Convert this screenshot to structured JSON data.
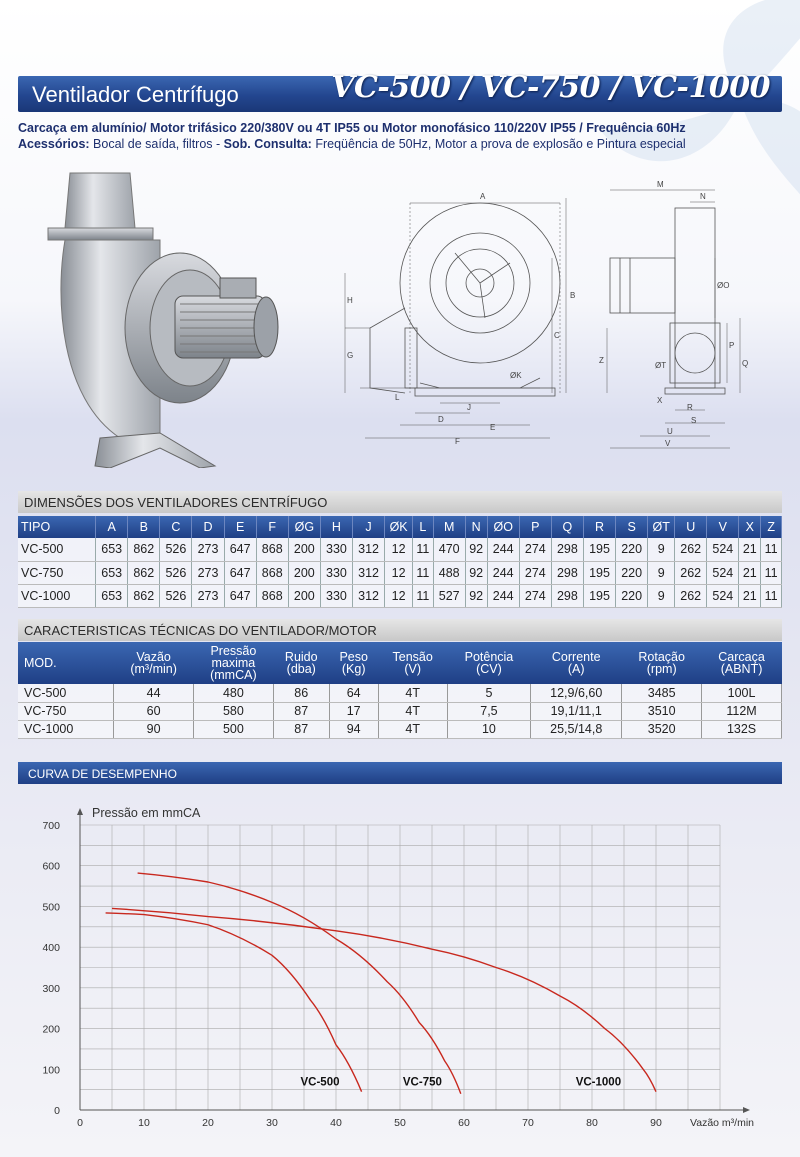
{
  "header": {
    "title": "Ventilador Centrífugo",
    "models_title": "VC-500 / VC-750 / VC-1000"
  },
  "specs": {
    "line1": "Carcaça em alumínio/ Motor trifásico 220/380V ou 4T IP55 ou Motor monofásico 110/220V IP55 / Frequência 60Hz",
    "accessories_label": "Acessórios:",
    "accessories_text": " Bocal de saída, filtros  - ",
    "consult_label": "Sob. Consulta:",
    "consult_text": " Freqüência de 50Hz, Motor a prova de explosão e Pintura especial"
  },
  "drawing_labels": {
    "front": [
      "A",
      "B",
      "C",
      "H",
      "G",
      "L",
      "J",
      "D",
      "E",
      "F",
      "ØK"
    ],
    "side": [
      "M",
      "N",
      "ØO",
      "P",
      "Q",
      "Z",
      "ØT",
      "X",
      "R",
      "S",
      "U",
      "V"
    ]
  },
  "dimensions": {
    "title": "DIMENSÕES DOS VENTILADORES CENTRÍFUGO",
    "columns": [
      "TIPO",
      "A",
      "B",
      "C",
      "D",
      "E",
      "F",
      "ØG",
      "H",
      "J",
      "ØK",
      "L",
      "M",
      "N",
      "ØO",
      "P",
      "Q",
      "R",
      "S",
      "ØT",
      "U",
      "V",
      "X",
      "Z"
    ],
    "rows": [
      [
        "VC-500",
        "653",
        "862",
        "526",
        "273",
        "647",
        "868",
        "200",
        "330",
        "312",
        "12",
        "11",
        "470",
        "92",
        "244",
        "274",
        "298",
        "195",
        "220",
        "9",
        "262",
        "524",
        "21",
        "11"
      ],
      [
        "VC-750",
        "653",
        "862",
        "526",
        "273",
        "647",
        "868",
        "200",
        "330",
        "312",
        "12",
        "11",
        "488",
        "92",
        "244",
        "274",
        "298",
        "195",
        "220",
        "9",
        "262",
        "524",
        "21",
        "11"
      ],
      [
        "VC-1000",
        "653",
        "862",
        "526",
        "273",
        "647",
        "868",
        "200",
        "330",
        "312",
        "12",
        "11",
        "527",
        "92",
        "244",
        "274",
        "298",
        "195",
        "220",
        "9",
        "262",
        "524",
        "21",
        "11"
      ]
    ]
  },
  "technical": {
    "title": "CARACTERISTICAS TÉCNICAS DO VENTILADOR/MOTOR",
    "columns": [
      [
        "MOD."
      ],
      [
        "Vazão",
        "(m³/min)"
      ],
      [
        "Pressão",
        "maxima",
        "(mmCA)"
      ],
      [
        "Ruido",
        "(dba)"
      ],
      [
        "Peso",
        "(Kg)"
      ],
      [
        "Tensão",
        "(V)"
      ],
      [
        "Potência",
        "(CV)"
      ],
      [
        "Corrente",
        "(A)"
      ],
      [
        "Rotação",
        "(rpm)"
      ],
      [
        "Carcaça",
        "(ABNT)"
      ]
    ],
    "rows": [
      [
        "VC-500",
        "44",
        "480",
        "86",
        "64",
        "4T",
        "5",
        "12,9/6,60",
        "3485",
        "100L"
      ],
      [
        "VC-750",
        "60",
        "580",
        "87",
        "17",
        "4T",
        "7,5",
        "19,1/11,1",
        "3510",
        "112M"
      ],
      [
        "VC-1000",
        "90",
        "500",
        "87",
        "94",
        "4T",
        "10",
        "25,5/14,8",
        "3520",
        "132S"
      ]
    ]
  },
  "performance": {
    "title": "CURVA DE DESEMPENHO"
  },
  "chart_data": {
    "type": "line",
    "title": "",
    "ylabel": "Pressão em  mmCA",
    "xlabel": "Vazão m³/min",
    "xlim": [
      0,
      100
    ],
    "ylim": [
      0,
      700
    ],
    "x_ticks": [
      0,
      10,
      20,
      30,
      40,
      50,
      60,
      70,
      80,
      90
    ],
    "y_ticks": [
      0,
      100,
      200,
      300,
      400,
      500,
      600,
      700
    ],
    "grid": true,
    "line_color": "#c8281e",
    "series": [
      {
        "name": "VC-500",
        "x": [
          4,
          10,
          20,
          30,
          36,
          40,
          44
        ],
        "y": [
          484,
          480,
          455,
          380,
          270,
          160,
          45
        ]
      },
      {
        "name": "VC-750",
        "x": [
          9,
          20,
          30,
          40,
          48,
          53,
          57,
          59.5
        ],
        "y": [
          582,
          560,
          510,
          420,
          315,
          215,
          120,
          40
        ]
      },
      {
        "name": "VC-1000",
        "x": [
          5,
          20,
          40,
          55,
          65,
          75,
          82,
          88,
          90
        ],
        "y": [
          495,
          475,
          440,
          395,
          350,
          280,
          200,
          100,
          45
        ]
      }
    ],
    "curve_labels": [
      {
        "text": "VC-500",
        "x": 37.5,
        "y": 60
      },
      {
        "text": "VC-750",
        "x": 53.5,
        "y": 60
      },
      {
        "text": "VC-1000",
        "x": 81,
        "y": 60
      }
    ]
  }
}
